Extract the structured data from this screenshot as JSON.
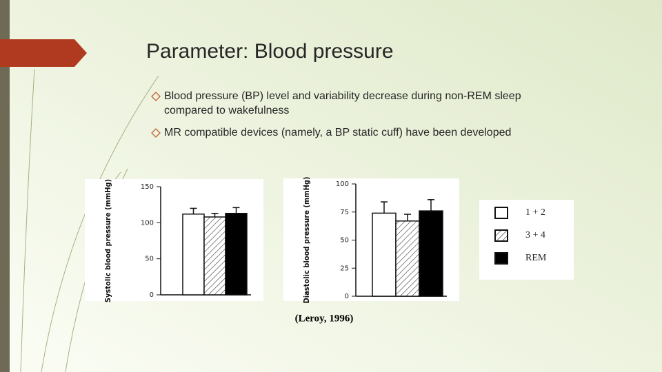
{
  "title": "Parameter: Blood pressure",
  "bullets": [
    [
      "Blood pressure (BP) level and variability decrease during non-REM sleep",
      "compared to wakefulness"
    ],
    [
      "MR compatible devices (namely, a BP static cuff) have been developed"
    ]
  ],
  "legend": [
    {
      "name": "1 + 2",
      "fill": "white"
    },
    {
      "name": "3 + 4",
      "fill": "hatched"
    },
    {
      "name": "REM",
      "fill": "black"
    }
  ],
  "chart_data": [
    {
      "type": "bar",
      "ylabel": "Systolic blood pressure (mmHg)",
      "values": [
        112,
        108,
        113
      ],
      "errors": [
        8,
        5,
        8
      ],
      "ylim": [
        0,
        150
      ],
      "yticks": [
        0,
        50,
        100,
        150
      ]
    },
    {
      "type": "bar",
      "ylabel": "Diastolic blood pressure (mmHg)",
      "values": [
        74,
        67,
        76
      ],
      "errors": [
        10,
        6,
        10
      ],
      "ylim": [
        0,
        100
      ],
      "yticks": [
        0,
        25,
        50,
        75,
        100
      ]
    }
  ],
  "citation": "(Leroy, 1996)"
}
